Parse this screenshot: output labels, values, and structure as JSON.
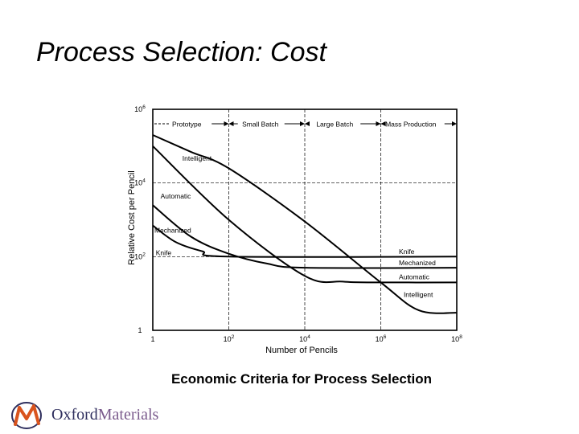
{
  "slide": {
    "title": "Process Selection: Cost",
    "caption": "Economic Criteria for Process Selection"
  },
  "logo": {
    "brand_part1": "Oxford",
    "brand_part2": "Materials",
    "colors": {
      "primary": "#2f2f5e",
      "accent": "#d9541e",
      "secondary": "#7a5a8c"
    }
  },
  "chart_data": {
    "type": "line",
    "xlabel": "Number of Pencils",
    "ylabel": "Relative Cost per Pencil",
    "x_scale": "log",
    "y_scale": "log",
    "xlim": [
      1,
      100000000
    ],
    "ylim": [
      1,
      1000000
    ],
    "grid": true,
    "x_ticks": [
      {
        "value": 1,
        "base": "1",
        "exp": ""
      },
      {
        "value": 100,
        "base": "10",
        "exp": "2"
      },
      {
        "value": 10000,
        "base": "10",
        "exp": "4"
      },
      {
        "value": 1000000,
        "base": "10",
        "exp": "6"
      },
      {
        "value": 100000000,
        "base": "10",
        "exp": "8"
      }
    ],
    "y_ticks": [
      {
        "value": 1,
        "base": "1",
        "exp": ""
      },
      {
        "value": 100,
        "base": "10",
        "exp": "2"
      },
      {
        "value": 10000,
        "base": "10",
        "exp": "4"
      },
      {
        "value": 1000000,
        "base": "10",
        "exp": "6"
      }
    ],
    "regimes": [
      {
        "label": "Prototype",
        "from": 1,
        "to": 100
      },
      {
        "label": "Small Batch",
        "from": 100,
        "to": 10000
      },
      {
        "label": "Large Batch",
        "from": 10000,
        "to": 1000000
      },
      {
        "label": "Mass Production",
        "from": 1000000,
        "to": 100000000
      }
    ],
    "series": [
      {
        "name": "Knife",
        "points": [
          [
            1,
            700
          ],
          [
            4,
            250
          ],
          [
            20,
            140
          ],
          [
            100,
            100
          ],
          [
            100000000,
            100
          ]
        ]
      },
      {
        "name": "Mechanized",
        "points": [
          [
            1,
            2500
          ],
          [
            10,
            350
          ],
          [
            100,
            120
          ],
          [
            1000,
            65
          ],
          [
            10000,
            50
          ],
          [
            100000000,
            50
          ]
        ]
      },
      {
        "name": "Automatic",
        "points": [
          [
            1,
            100000
          ],
          [
            100,
            1000
          ],
          [
            10000,
            30
          ],
          [
            100000,
            21
          ],
          [
            1000000,
            20
          ],
          [
            100000000,
            20
          ]
        ]
      },
      {
        "name": "Intelligent",
        "points": [
          [
            1,
            200000
          ],
          [
            10,
            70000
          ],
          [
            100,
            25000
          ],
          [
            10000,
            900
          ],
          [
            1000000,
            20
          ],
          [
            10000000,
            3.5
          ],
          [
            100000000,
            3
          ]
        ]
      }
    ]
  }
}
